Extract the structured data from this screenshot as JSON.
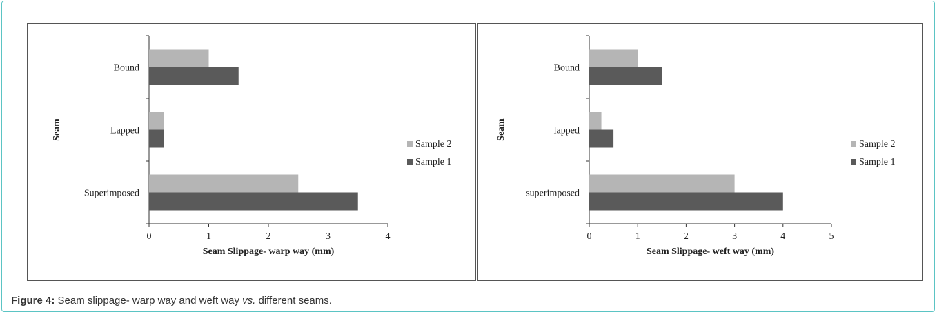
{
  "caption": {
    "label": "Figure 4:",
    "text_before": " Seam slippage- warp way and weft way ",
    "italic": "vs.",
    "text_after": " different seams."
  },
  "colors": {
    "sample2": "#b5b5b5",
    "sample1": "#5a5a5a",
    "axis": "#333333"
  },
  "chart_data": [
    {
      "type": "bar",
      "orientation": "horizontal",
      "categories": [
        "Bound",
        "Lapped",
        "Superimposed"
      ],
      "series": [
        {
          "name": "Sample 2",
          "values": [
            1.0,
            0.25,
            2.5
          ]
        },
        {
          "name": "Sample 1",
          "values": [
            1.5,
            0.25,
            3.5
          ]
        }
      ],
      "xlabel": "Seam Slippage- warp way (mm)",
      "ylabel": "Seam",
      "xlim": [
        0,
        4
      ],
      "xticks": [
        "0",
        "1",
        "2",
        "3",
        "4"
      ],
      "grid": false,
      "legend": "right"
    },
    {
      "type": "bar",
      "orientation": "horizontal",
      "categories": [
        "Bound",
        "lapped",
        "superimposed"
      ],
      "series": [
        {
          "name": "Sample 2",
          "values": [
            1.0,
            0.25,
            3.0
          ]
        },
        {
          "name": "Sample 1",
          "values": [
            1.5,
            0.5,
            4.0
          ]
        }
      ],
      "xlabel": "Seam Slippage- weft way (mm)",
      "ylabel": "Seam",
      "xlim": [
        0,
        5
      ],
      "xticks": [
        "0",
        "1",
        "2",
        "3",
        "4",
        "5"
      ],
      "grid": false,
      "legend": "right"
    }
  ]
}
